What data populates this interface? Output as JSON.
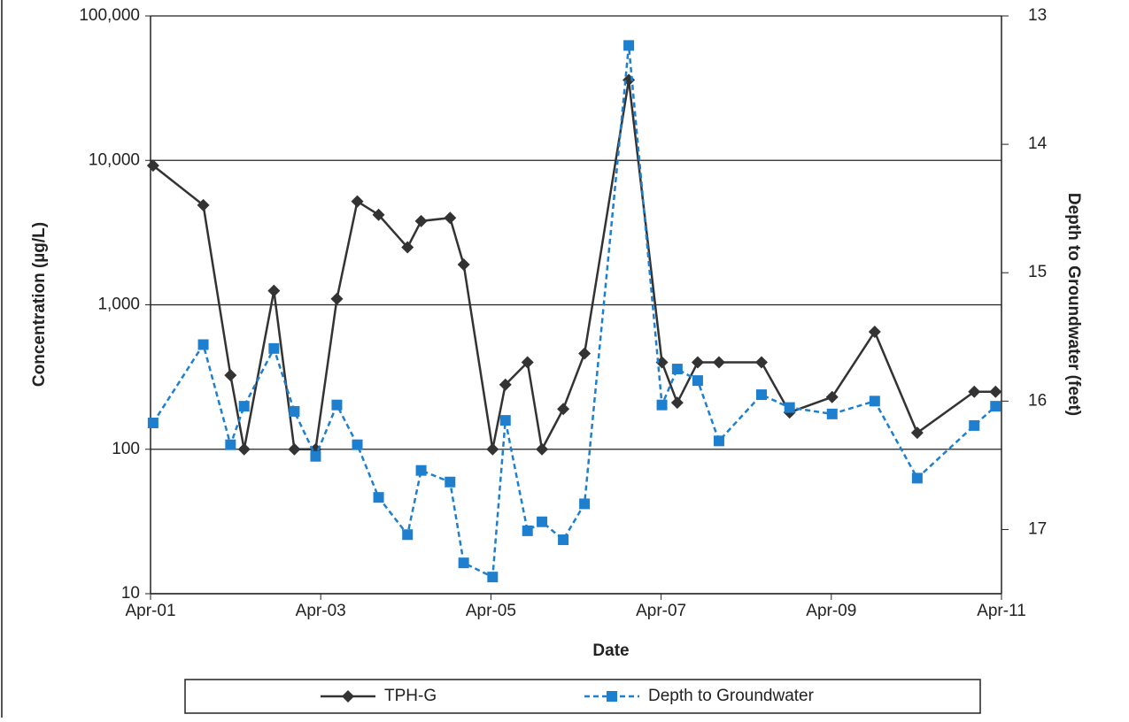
{
  "chart_data": {
    "type": "line",
    "xlabel": "Date",
    "ylabel": "Concentration (µg/L)",
    "y2label": "Depth to Groundwater (feet)",
    "x": [
      2001.28,
      2001.87,
      2002.19,
      2002.35,
      2002.7,
      2002.94,
      2003.19,
      2003.44,
      2003.68,
      2003.93,
      2004.27,
      2004.43,
      2004.77,
      2004.93,
      2005.27,
      2005.42,
      2005.68,
      2005.85,
      2006.1,
      2006.35,
      2006.87,
      2007.26,
      2007.44,
      2007.68,
      2007.93,
      2008.43,
      2008.76,
      2009.26,
      2009.76,
      2010.26,
      2010.93,
      2011.18
    ],
    "series": [
      {
        "name": "TPH-G",
        "color": "#333333",
        "marker": "diamond",
        "dash": false,
        "values": [
          9200,
          4900,
          325,
          100,
          1250,
          100,
          100,
          1100,
          5200,
          4200,
          2500,
          3800,
          4000,
          1900,
          100,
          280,
          400,
          100,
          190,
          460,
          36000,
          400,
          210,
          400,
          400,
          400,
          180,
          230,
          650,
          130,
          250,
          250
        ]
      },
      {
        "name": "Depth to Groundwater",
        "color": "#1f7fcf",
        "marker": "square",
        "dash": true,
        "axis": "y2",
        "values": [
          16.17,
          15.56,
          16.34,
          16.04,
          15.59,
          16.08,
          16.43,
          16.03,
          16.34,
          16.75,
          17.04,
          16.54,
          16.63,
          17.26,
          17.37,
          16.15,
          17.01,
          16.94,
          17.08,
          16.8,
          13.23,
          16.03,
          15.75,
          15.84,
          16.31,
          15.95,
          16.05,
          16.1,
          16.0,
          16.6,
          16.19,
          16.04
        ]
      }
    ],
    "xlim": [
      2001.25,
      2011.25
    ],
    "xticks": [
      {
        "value": 2001.25,
        "label": "Apr-01"
      },
      {
        "value": 2003.25,
        "label": "Apr-03"
      },
      {
        "value": 2005.25,
        "label": "Apr-05"
      },
      {
        "value": 2007.25,
        "label": "Apr-07"
      },
      {
        "value": 2009.25,
        "label": "Apr-09"
      },
      {
        "value": 2011.25,
        "label": "Apr-11"
      }
    ],
    "ylim": [
      10,
      100000
    ],
    "ylog": true,
    "yticks": [
      10,
      100,
      {
        "value": 1000,
        "label": "1,000"
      },
      {
        "value": 10000,
        "label": "10,000"
      },
      {
        "value": 100000,
        "label": "100,000"
      }
    ],
    "y2lim": [
      13,
      17.5
    ],
    "y2inverted": true,
    "y2ticks": [
      13,
      14,
      15,
      16,
      17
    ],
    "grid": true,
    "legend": "bottom"
  }
}
